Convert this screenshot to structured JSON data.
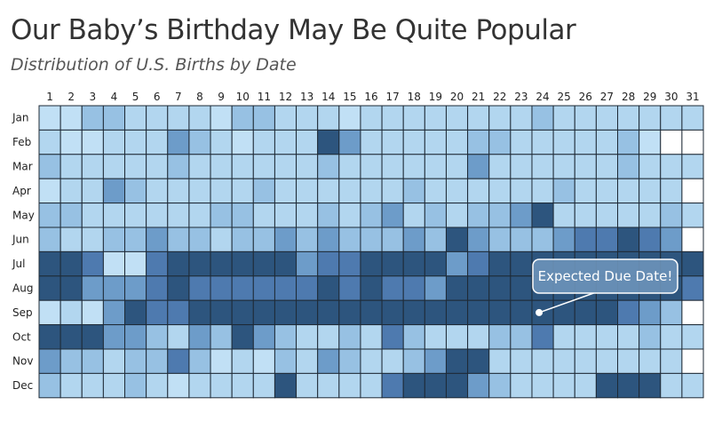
{
  "title": "Our Baby’s Birthday May Be Quite Popular",
  "subtitle": "Distribution of U.S. Births by Date",
  "chart_data": {
    "type": "heatmap",
    "x_labels": [
      "1",
      "2",
      "3",
      "4",
      "5",
      "6",
      "7",
      "8",
      "9",
      "10",
      "11",
      "12",
      "13",
      "14",
      "15",
      "16",
      "17",
      "18",
      "19",
      "20",
      "21",
      "22",
      "23",
      "24",
      "25",
      "26",
      "27",
      "28",
      "29",
      "30",
      "31"
    ],
    "y_labels": [
      "Jan",
      "Feb",
      "Mar",
      "Apr",
      "May",
      "Jun",
      "Jul",
      "Aug",
      "Sep",
      "Oct",
      "Nov",
      "Dec"
    ],
    "scale": "popularity level 0 (least) to 5 (most); null = date does not exist",
    "values": [
      [
        0,
        0,
        2,
        2,
        1,
        1,
        1,
        1,
        0,
        2,
        2,
        1,
        1,
        1,
        0,
        1,
        1,
        1,
        1,
        1,
        1,
        1,
        1,
        2,
        1,
        1,
        1,
        1,
        1,
        1,
        1
      ],
      [
        1,
        0,
        0,
        1,
        1,
        1,
        3,
        2,
        1,
        0,
        1,
        1,
        1,
        5,
        3,
        1,
        1,
        1,
        1,
        1,
        2,
        2,
        1,
        1,
        1,
        1,
        1,
        2,
        0,
        null,
        null
      ],
      [
        2,
        1,
        1,
        1,
        1,
        1,
        2,
        1,
        1,
        1,
        1,
        1,
        1,
        2,
        1,
        1,
        1,
        1,
        1,
        1,
        3,
        1,
        1,
        1,
        1,
        1,
        1,
        2,
        1,
        1,
        1
      ],
      [
        0,
        1,
        1,
        3,
        2,
        1,
        1,
        1,
        1,
        1,
        2,
        1,
        1,
        1,
        1,
        1,
        1,
        2,
        1,
        1,
        1,
        1,
        1,
        1,
        2,
        1,
        1,
        1,
        1,
        1,
        null
      ],
      [
        2,
        2,
        1,
        1,
        1,
        1,
        1,
        1,
        2,
        2,
        1,
        1,
        1,
        2,
        1,
        2,
        3,
        1,
        2,
        1,
        2,
        2,
        3,
        5,
        1,
        1,
        1,
        1,
        1,
        2,
        1
      ],
      [
        2,
        1,
        1,
        2,
        2,
        3,
        2,
        2,
        1,
        2,
        2,
        3,
        2,
        3,
        2,
        2,
        2,
        3,
        2,
        5,
        3,
        2,
        2,
        2,
        3,
        4,
        4,
        5,
        4,
        3,
        null
      ],
      [
        5,
        5,
        4,
        0,
        0,
        4,
        5,
        5,
        5,
        5,
        5,
        5,
        3,
        4,
        4,
        5,
        5,
        5,
        5,
        3,
        4,
        5,
        5,
        5,
        5,
        5,
        5,
        5,
        5,
        5,
        5
      ],
      [
        5,
        5,
        3,
        3,
        3,
        4,
        5,
        4,
        4,
        4,
        4,
        4,
        4,
        5,
        4,
        5,
        4,
        4,
        3,
        5,
        5,
        5,
        5,
        5,
        5,
        5,
        5,
        5,
        5,
        5,
        4
      ],
      [
        0,
        1,
        0,
        3,
        5,
        4,
        4,
        5,
        5,
        5,
        5,
        5,
        5,
        5,
        5,
        5,
        5,
        5,
        5,
        5,
        5,
        5,
        5,
        5,
        5,
        5,
        5,
        4,
        3,
        2,
        null
      ],
      [
        5,
        5,
        5,
        3,
        3,
        2,
        1,
        3,
        2,
        5,
        3,
        2,
        1,
        1,
        2,
        1,
        4,
        2,
        1,
        1,
        1,
        2,
        2,
        4,
        1,
        1,
        1,
        1,
        2,
        1,
        1
      ],
      [
        3,
        2,
        2,
        1,
        2,
        2,
        4,
        2,
        0,
        1,
        0,
        2,
        1,
        3,
        2,
        1,
        1,
        2,
        3,
        5,
        5,
        1,
        1,
        1,
        1,
        1,
        1,
        1,
        1,
        1,
        null
      ],
      [
        2,
        1,
        1,
        1,
        2,
        1,
        0,
        1,
        1,
        1,
        1,
        5,
        1,
        1,
        1,
        1,
        4,
        5,
        5,
        5,
        3,
        2,
        1,
        1,
        1,
        1,
        5,
        5,
        5,
        1,
        1
      ]
    ],
    "palette": [
      "#c1e0f5",
      "#b2d6ef",
      "#97c1e3",
      "#6d9cc9",
      "#4e7aaf",
      "#2d557e"
    ],
    "missing_color": "#ffffff",
    "grid_color": "#1e2a36",
    "legend": "none",
    "annotation": {
      "text": "Expected Due Date!",
      "target_month": "Sep",
      "target_day": "24"
    }
  }
}
